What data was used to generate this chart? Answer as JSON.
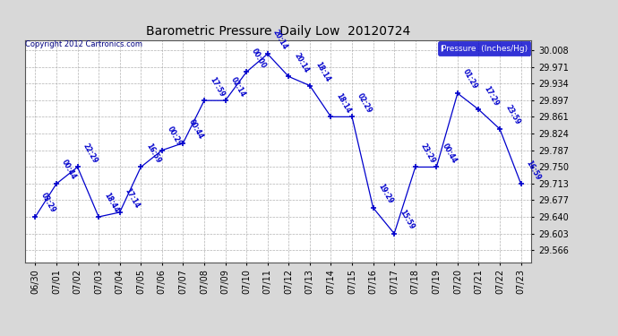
{
  "title": "Barometric Pressure  Daily Low  20120724",
  "copyright": "Copyright 2012 Cartronics.com",
  "legend_label": "Pressure  (Inches/Hg)",
  "background_color": "#d8d8d8",
  "plot_bg_color": "#ffffff",
  "line_color": "#0000cc",
  "text_color": "#0000cc",
  "ytick_values": [
    29.566,
    29.603,
    29.64,
    29.677,
    29.713,
    29.75,
    29.787,
    29.824,
    29.861,
    29.897,
    29.934,
    29.971,
    30.008
  ],
  "ylim_low": 29.54,
  "ylim_high": 30.03,
  "points": [
    {
      "date": "06/30",
      "time": "03:29",
      "value": 29.64
    },
    {
      "date": "07/01",
      "time": "00:44",
      "value": 29.713
    },
    {
      "date": "07/02",
      "time": "22:29",
      "value": 29.75
    },
    {
      "date": "07/03",
      "time": "18:44",
      "value": 29.64
    },
    {
      "date": "07/04",
      "time": "17:14",
      "value": 29.65
    },
    {
      "date": "07/05",
      "time": "16:59",
      "value": 29.75
    },
    {
      "date": "07/06",
      "time": "00:29",
      "value": 29.787
    },
    {
      "date": "07/07",
      "time": "00:44",
      "value": 29.803
    },
    {
      "date": "07/08",
      "time": "17:59",
      "value": 29.897
    },
    {
      "date": "07/09",
      "time": "02:14",
      "value": 29.897
    },
    {
      "date": "07/10",
      "time": "00:00",
      "value": 29.96
    },
    {
      "date": "07/11",
      "time": "20:14",
      "value": 30.0
    },
    {
      "date": "07/12",
      "time": "20:14",
      "value": 29.95
    },
    {
      "date": "07/13",
      "time": "18:14",
      "value": 29.93
    },
    {
      "date": "07/14",
      "time": "18:14",
      "value": 29.861
    },
    {
      "date": "07/15",
      "time": "02:29",
      "value": 29.861
    },
    {
      "date": "07/16",
      "time": "19:29",
      "value": 29.66
    },
    {
      "date": "07/17",
      "time": "15:59",
      "value": 29.603
    },
    {
      "date": "07/18",
      "time": "23:29",
      "value": 29.75
    },
    {
      "date": "07/19",
      "time": "00:44",
      "value": 29.75
    },
    {
      "date": "07/20",
      "time": "01:29",
      "value": 29.913
    },
    {
      "date": "07/21",
      "time": "17:29",
      "value": 29.877
    },
    {
      "date": "07/22",
      "time": "23:59",
      "value": 29.834
    },
    {
      "date": "07/23",
      "time": "16:59",
      "value": 29.713
    }
  ]
}
